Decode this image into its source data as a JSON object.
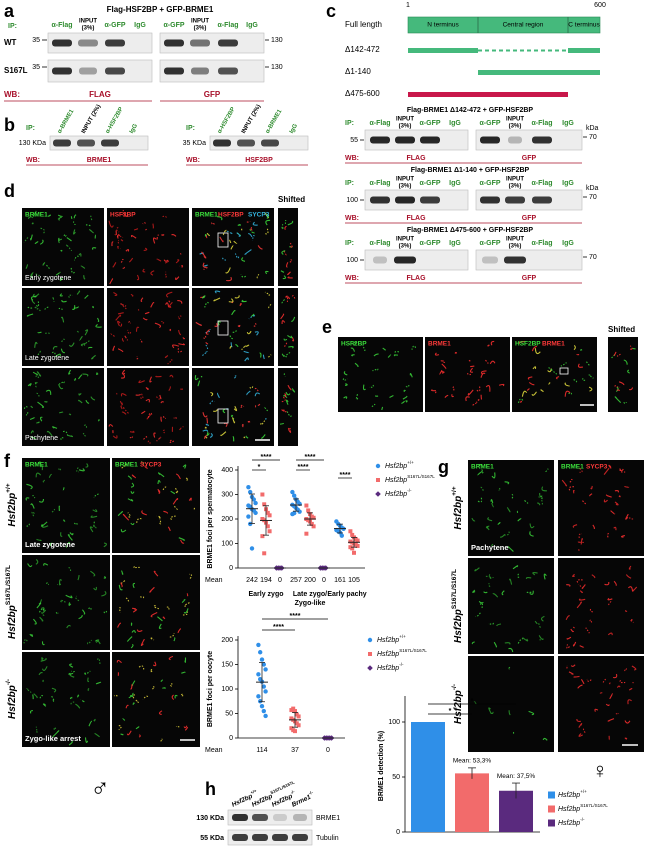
{
  "genotypes": [
    {
      "gene": "Hsf2bp",
      "allele": "+/+",
      "color": "#2f8fe8",
      "marker": "circle"
    },
    {
      "gene": "Hsf2bp",
      "allele": "S167L/S167L",
      "color": "#f26b6b",
      "marker": "square"
    },
    {
      "gene": "Hsf2bp",
      "allele": "-/-",
      "color": "#5a2a7e",
      "marker": "diamond"
    }
  ],
  "panel_a": {
    "label": "a",
    "title": "Flag-HSF2BP  + GFP-BRME1",
    "ip": "IP:",
    "lanes_left": [
      [
        "α-Flag"
      ],
      [
        "INPUT",
        "(3%)"
      ],
      [
        "α-GFP"
      ],
      [
        "IgG"
      ]
    ],
    "lanes_right": [
      [
        "α-GFP"
      ],
      [
        "INPUT",
        "(3%)"
      ],
      [
        "α-Flag"
      ],
      [
        "IgG"
      ]
    ],
    "rows": [
      "WT",
      "S167L"
    ],
    "mw_left": [
      "35",
      "35"
    ],
    "mw_right": [
      "130",
      "130"
    ],
    "wb": "WB:",
    "wb_left": "FLAG",
    "wb_right": "GFP"
  },
  "panel_b": {
    "label": "b",
    "left": {
      "ip": "IP:",
      "lanes": [
        "α-BRME1",
        "INPUT (2%)",
        "α-HSF2BP",
        "IgG"
      ],
      "mw": "130 KDa",
      "wb": "WB:",
      "antibody": "BRME1"
    },
    "right": {
      "ip": "IP:",
      "lanes": [
        "α-HSF2BP",
        "INPUT (2%)",
        "α-BRME1",
        "IgG"
      ],
      "mw": "35 KDa",
      "wb": "WB:",
      "antibody": "HSF2BP"
    }
  },
  "panel_c": {
    "label": "c",
    "start": "1",
    "end": "600",
    "full_length": "Full length",
    "domains": [
      "N terminus",
      "Central region",
      "C terminus"
    ],
    "constructs": [
      "Δ142-472",
      "Δ1-140",
      "Δ475-600"
    ],
    "blots": [
      {
        "title": "Flag-BRME1 Δ142-472 + GFP-HSF2BP",
        "ip": "IP:",
        "lanes_left": [
          [
            "α-Flag"
          ],
          [
            "INPUT",
            "(3%)"
          ],
          [
            "α-GFP"
          ],
          [
            "IgG"
          ]
        ],
        "lanes_right": [
          [
            "α-GFP"
          ],
          [
            "INPUT",
            "(3%)"
          ],
          [
            "α-Flag"
          ],
          [
            "IgG"
          ]
        ],
        "mw_left": "55",
        "mw_right": "70",
        "kda": "kDa",
        "wb": "WB:",
        "wb_left": "FLAG",
        "wb_right": "GFP"
      },
      {
        "title": "Flag-BRME1 Δ1-140 + GFP-HSF2BP",
        "ip": "IP:",
        "lanes_left": [
          [
            "α-Flag"
          ],
          [
            "INPUT",
            "(3%)"
          ],
          [
            "α-GFP"
          ],
          [
            "IgG"
          ]
        ],
        "lanes_right": [
          [
            "α-GFP"
          ],
          [
            "INPUT",
            "(3%)"
          ],
          [
            "α-Flag"
          ],
          [
            "IgG"
          ]
        ],
        "mw_left": "100",
        "mw_right": "70",
        "kda": "kDa",
        "wb": "WB:",
        "wb_left": "FLAG",
        "wb_right": "GFP"
      },
      {
        "title": "Flag-BRME1 Δ475-600 + GFP-HSF2BP",
        "ip": "IP:",
        "lanes_left": [
          [
            "α-Flag"
          ],
          [
            "INPUT",
            "(3%)"
          ],
          [
            "α-GFP"
          ],
          [
            "IgG"
          ]
        ],
        "lanes_right": [
          [
            "α-GFP"
          ],
          [
            "INPUT",
            "(3%)"
          ],
          [
            "α-Flag"
          ],
          [
            "IgG"
          ]
        ],
        "mw_left": "100",
        "mw_right": "70",
        "wb": "WB:",
        "wb_left": "FLAG",
        "wb_right": "GFP"
      }
    ]
  },
  "panel_d": {
    "label": "d",
    "channels": [
      "BRME1",
      "HSF2BP"
    ],
    "merged": [
      "BRME1",
      "HSF2BP",
      "SYCP3"
    ],
    "shifted": "Shifted",
    "stages": [
      "Early zygotene",
      "Late zygotene",
      "Pachytene"
    ]
  },
  "panel_e": {
    "label": "e",
    "channels": [
      "HSF2BP",
      "BRME1"
    ],
    "merged": [
      "HSF2BP",
      "BRME1"
    ],
    "shifted": "Shifted"
  },
  "panel_f": {
    "label": "f",
    "channels": [
      "BRME1"
    ],
    "merged": [
      "BRME1",
      "SYCP3"
    ],
    "stages": [
      "Late zygotene",
      "Zygo-like arrest"
    ],
    "sex_symbol": "♂",
    "spermatocyte_chart": {
      "type": "dot",
      "ylabel": "BRME1 foci per spermatocyte",
      "ylim": [
        0,
        400
      ],
      "yticks": [
        0,
        100,
        200,
        300,
        400
      ],
      "mean_label": "Mean",
      "significance": [
        "****",
        "*",
        "****",
        "****",
        "****"
      ],
      "groups": [
        {
          "label": [
            "Early zygo"
          ],
          "series": [
            {
              "points": [
                330,
                310,
                290,
                280,
                265,
                255,
                250,
                240,
                235,
                225,
                210,
                180,
                80
              ],
              "mean": 242,
              "sd": 60
            },
            {
              "points": [
                300,
                260,
                240,
                225,
                215,
                200,
                195,
                185,
                170,
                150,
                130,
                60
              ],
              "mean": 194,
              "sd": 60
            },
            {
              "points": [
                0,
                0,
                0,
                0
              ],
              "mean": 0,
              "sd": 0
            }
          ]
        },
        {
          "label": [
            "Late zygo/",
            "Zygo-like"
          ],
          "series": [
            {
              "points": [
                310,
                295,
                280,
                270,
                262,
                258,
                252,
                245,
                238,
                230,
                220,
                224
              ],
              "mean": 257,
              "sd": 25
            },
            {
              "points": [
                255,
                235,
                220,
                210,
                205,
                200,
                195,
                190,
                180,
                170,
                140
              ],
              "mean": 200,
              "sd": 25
            },
            {
              "points": [
                0,
                0,
                0,
                0
              ],
              "mean": 0,
              "sd": 0
            }
          ]
        },
        {
          "label": [
            "Early pachy"
          ],
          "series": [
            {
              "points": [
                190,
                180,
                172,
                165,
                160,
                155,
                150,
                145,
                132
              ],
              "mean": 161,
              "sd": 18
            },
            {
              "points": [
                150,
                135,
                125,
                118,
                112,
                108,
                104,
                100,
                96,
                90,
                85,
                80,
                62
              ],
              "mean": 105,
              "sd": 20
            }
          ]
        }
      ]
    },
    "oocyte_chart": {
      "type": "dot",
      "ylabel": "BRME1 foci per oocyte",
      "ylim": [
        0,
        200
      ],
      "yticks": [
        0,
        50,
        100,
        150,
        200
      ],
      "mean_label": "Mean",
      "significance": [
        "****",
        "****"
      ],
      "groups": [
        {
          "series": [
            {
              "points": [
                190,
                175,
                160,
                150,
                140,
                130,
                120,
                115,
                105,
                95,
                85,
                75,
                65,
                55,
                45
              ],
              "mean": 114,
              "sd": 40
            },
            {
              "points": [
                57,
                60,
                55,
                48,
                44,
                40,
                37,
                34,
                30,
                26,
                20,
                16,
                14
              ],
              "mean": 37,
              "sd": 15
            },
            {
              "points": [
                0,
                0,
                0,
                0,
                0
              ],
              "mean": 0,
              "sd": 0
            }
          ]
        }
      ]
    }
  },
  "panel_g": {
    "label": "g",
    "channels": [
      "BRME1"
    ],
    "merged": [
      "BRME1",
      "SYCP3"
    ],
    "stage": "Pachytene",
    "sex_symbol": "♀"
  },
  "panel_h": {
    "label": "h",
    "brme1_ko": {
      "gene": "Brme1",
      "allele": "-/-"
    },
    "mw": [
      "130 KDa",
      "55 KDa"
    ],
    "antibodies": [
      "BRME1",
      "Tubulin"
    ],
    "chart": {
      "type": "bar",
      "ylabel": "BRME1 detection (%)",
      "ylim": [
        0,
        120
      ],
      "yticks": [
        0,
        50,
        100
      ],
      "values": [
        100,
        53.3,
        37.5
      ],
      "errors": [
        0,
        5,
        7
      ],
      "value_labels": [
        null,
        "Mean: 53,3%",
        "Mean: 37,5%"
      ],
      "significance": [
        "*",
        "*"
      ]
    }
  }
}
